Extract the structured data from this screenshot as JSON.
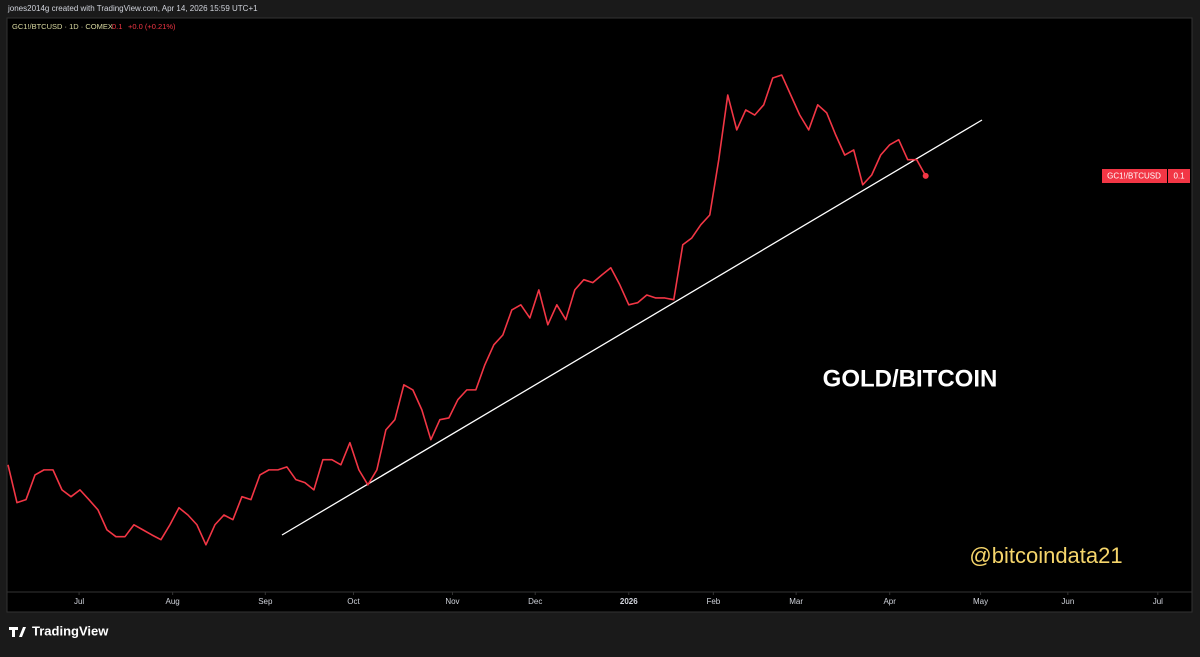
{
  "header": "jones2014g created with TradingView.com, Apr 14, 2026 15:59 UTC+1",
  "chart_data": {
    "type": "line",
    "symbol": "GC1!/BTCUSD · 1D · COMEX",
    "tag": "GC1!/BTCUSD",
    "change": "+0.0 (+0.21%)",
    "annotation": "GOLD/BITCOIN",
    "watermark": "@bitcoindata21",
    "color": "#f23645",
    "values": [
      0.0321,
      0.0232,
      0.0239,
      0.0297,
      0.0309,
      0.0309,
      0.0262,
      0.0246,
      0.0262,
      0.0239,
      0.0215,
      0.0168,
      0.0152,
      0.0152,
      0.018,
      0.0168,
      0.0156,
      0.0145,
      0.018,
      0.022,
      0.0203,
      0.018,
      0.0133,
      0.018,
      0.0203,
      0.0192,
      0.0246,
      0.0239,
      0.0297,
      0.0309,
      0.0309,
      0.0316,
      0.0286,
      0.0279,
      0.0262,
      0.0333,
      0.0333,
      0.0321,
      0.0373,
      0.0309,
      0.0274,
      0.0309,
      0.0403,
      0.0427,
      0.0509,
      0.0497,
      0.045,
      0.038,
      0.0427,
      0.0431,
      0.0474,
      0.0497,
      0.0497,
      0.0556,
      0.0603,
      0.0626,
      0.0685,
      0.0697,
      0.0666,
      0.0732,
      0.065,
      0.0697,
      0.0662,
      0.0732,
      0.0756,
      0.0749,
      0.0767,
      0.0784,
      0.0744,
      0.0697,
      0.0702,
      0.072,
      0.0713,
      0.0713,
      0.0709,
      0.0838,
      0.0854,
      0.0885,
      0.0908,
      0.1038,
      0.119,
      0.1108,
      0.1155,
      0.1143,
      0.1167,
      0.123,
      0.1237,
      0.119,
      0.1143,
      0.1108,
      0.1167,
      0.1148,
      0.1096,
      0.1049,
      0.1061,
      0.0979,
      0.1002,
      0.1049,
      0.1073,
      0.1085,
      0.1038,
      0.1038,
      0.1
    ],
    "ylim": [
      0.0022,
      0.1371
    ],
    "xlim": [
      0,
      131.6
    ],
    "xticks": [
      {
        "value": 7.9,
        "label": "Jul"
      },
      {
        "value": 18.3,
        "label": "Aug"
      },
      {
        "value": 28.6,
        "label": "Sep"
      },
      {
        "value": 38.4,
        "label": "Oct"
      },
      {
        "value": 49.4,
        "label": "Nov"
      },
      {
        "value": 58.6,
        "label": "Dec"
      },
      {
        "value": 69,
        "label": "2026"
      },
      {
        "value": 78.4,
        "label": "Feb"
      },
      {
        "value": 87.6,
        "label": "Mar"
      },
      {
        "value": 98,
        "label": "Apr"
      },
      {
        "value": 108.1,
        "label": "May"
      },
      {
        "value": 117.8,
        "label": "Jun"
      },
      {
        "value": 127.8,
        "label": "Jul"
      }
    ]
  },
  "footer": "TradingView"
}
